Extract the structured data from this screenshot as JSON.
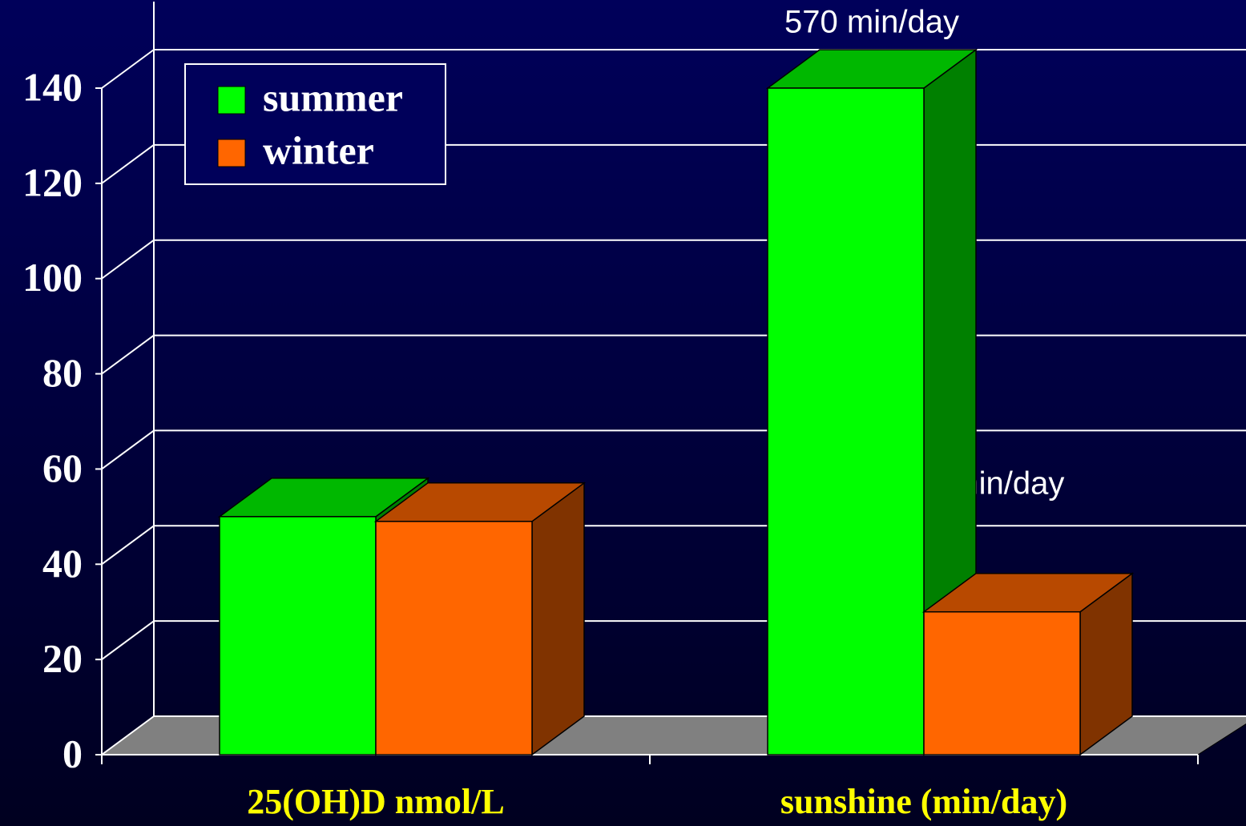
{
  "chart_data": {
    "type": "bar3d",
    "categories": [
      "25(OH)D nmol/L",
      "sunshine (min/day)"
    ],
    "series": [
      {
        "name": "summer",
        "color": "#00ff00",
        "values": [
          50,
          140
        ]
      },
      {
        "name": "winter",
        "color": "#ff6600",
        "values": [
          49,
          30
        ]
      }
    ],
    "ylim": [
      0,
      140
    ],
    "yticks": [
      0,
      20,
      40,
      60,
      80,
      100,
      120,
      140
    ],
    "grid": true,
    "legend": "upper left",
    "annotations": [
      {
        "text": "570 min/day",
        "category": 1,
        "series": 0
      },
      {
        "text": "30 min/day",
        "category": 1,
        "series": 1
      }
    ]
  }
}
